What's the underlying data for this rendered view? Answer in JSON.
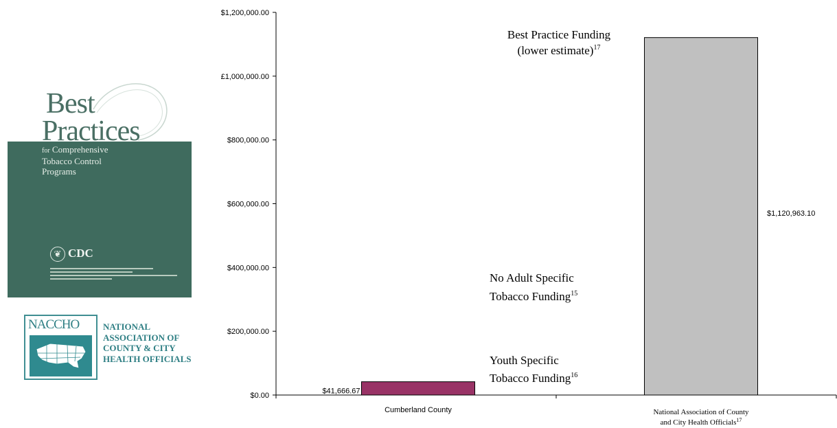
{
  "cover": {
    "title_line1": "Best",
    "title_line2": "Practices",
    "subtitle_for": "for",
    "subtitle_line1": "Comprehensive",
    "subtitle_line2": "Tobacco Control",
    "subtitle_line3": "Programs",
    "brand": "CDC"
  },
  "naccho": {
    "wordmark": "NACCHO",
    "name_line1": "NATIONAL",
    "name_line2": "ASSOCIATION OF",
    "name_line3": "COUNTY & CITY",
    "name_line4": "HEALTH OFFICIALS"
  },
  "chart_data": {
    "type": "bar",
    "categories": [
      "Cumberland County",
      "National Association of County and City Health Officials"
    ],
    "category_superscripts": [
      "",
      "17"
    ],
    "values": [
      41666.67,
      1120963.1
    ],
    "value_labels": [
      "$41,666.67",
      "$1,120,963.10"
    ],
    "bar_colors": [
      "#993366",
      "#c0c0c0"
    ],
    "ylim": [
      0,
      1200000
    ],
    "yticks": [
      0,
      200000,
      400000,
      600000,
      800000,
      1000000,
      1200000
    ],
    "ytick_labels": [
      "$0.00",
      "$200,000.00",
      "$400,000.00",
      "$600,000.00",
      "$800,000.00",
      "£1,000,000.00",
      "$1,200,000.00"
    ],
    "grid": false,
    "annotations": [
      {
        "line1": "Best Practice Funding",
        "line2": "(lower estimate)",
        "sup": "17"
      },
      {
        "line1": "No Adult Specific",
        "line2": "Tobacco Funding",
        "sup": "15"
      },
      {
        "line1": "Youth Specific",
        "line2": "Tobacco Funding",
        "sup": "16"
      }
    ]
  }
}
